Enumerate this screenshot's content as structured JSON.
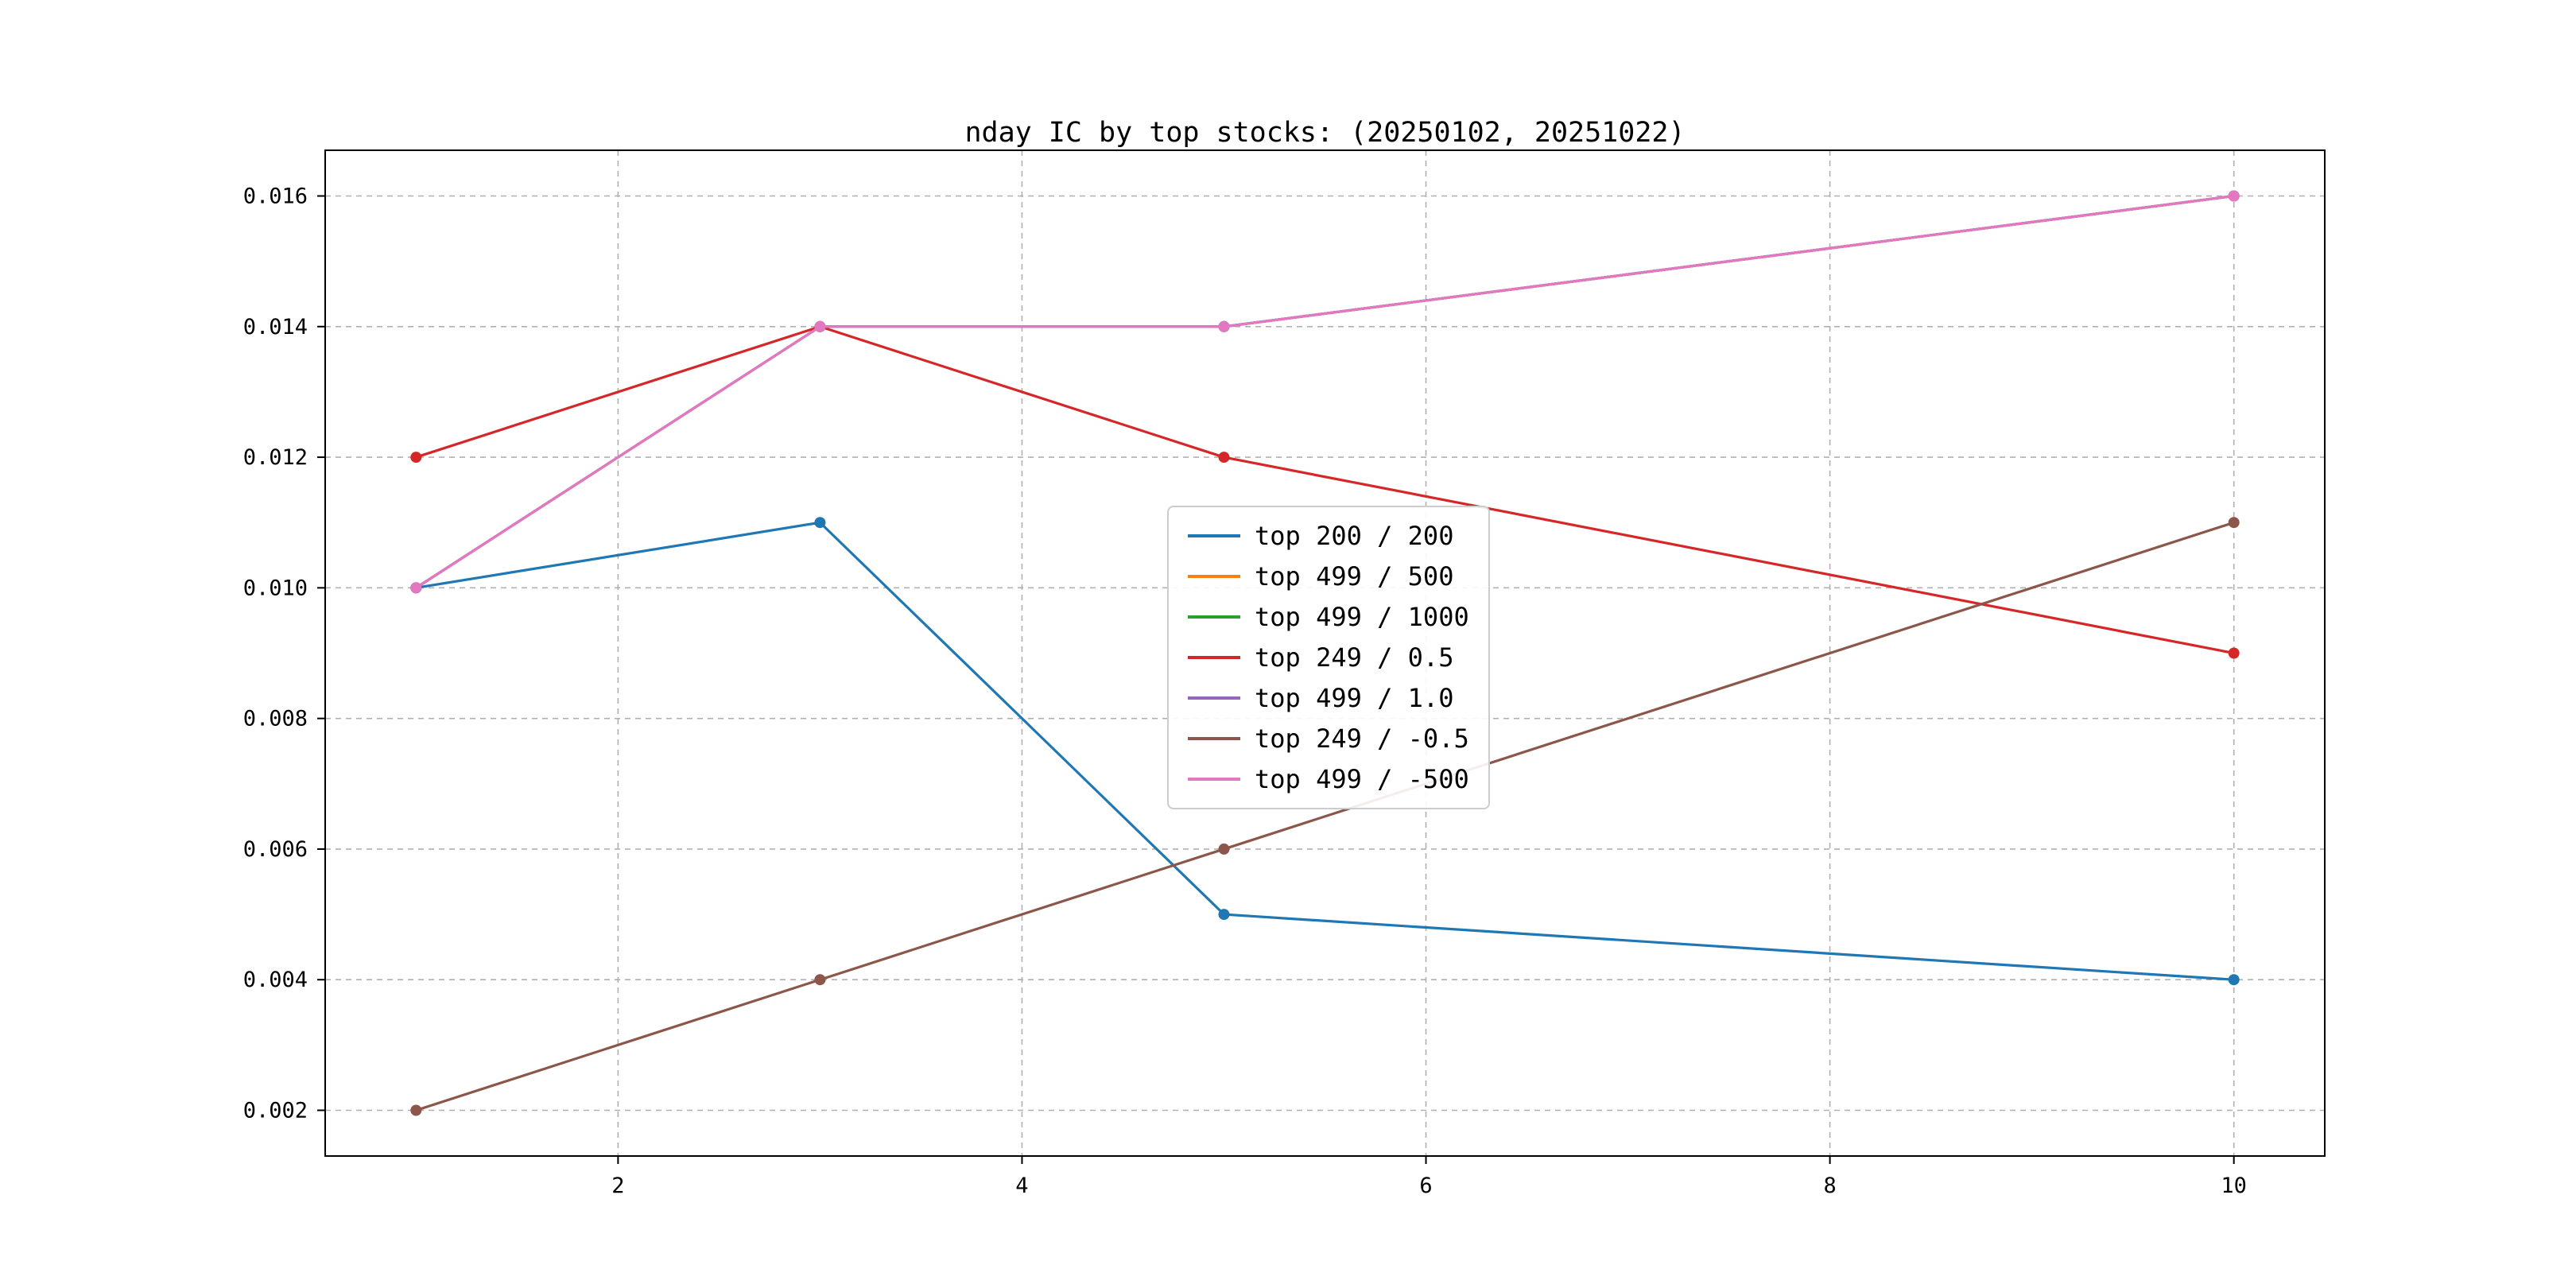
{
  "chart_data": {
    "type": "line",
    "title": "nday IC by top stocks: (20250102, 20251022)",
    "x": [
      1,
      3,
      5,
      10
    ],
    "series": [
      {
        "name": "top 200 / 200",
        "color": "#1f77b4",
        "values": [
          0.01,
          0.011,
          0.005,
          0.004
        ]
      },
      {
        "name": "top 499 / 500",
        "color": "#ff7f0e",
        "values": [
          0.01,
          0.014,
          0.014,
          0.016
        ]
      },
      {
        "name": "top 499 / 1000",
        "color": "#2ca02c",
        "values": [
          0.01,
          0.014,
          0.014,
          0.016
        ]
      },
      {
        "name": "top 249 / 0.5",
        "color": "#d62728",
        "values": [
          0.012,
          0.014,
          0.012,
          0.009
        ]
      },
      {
        "name": "top 499 / 1.0",
        "color": "#9467bd",
        "values": [
          0.01,
          0.014,
          0.014,
          0.016
        ]
      },
      {
        "name": "top 249 / -0.5",
        "color": "#8c564b",
        "values": [
          0.002,
          0.004,
          0.006,
          0.011
        ]
      },
      {
        "name": "top 499 / -500",
        "color": "#e377c2",
        "values": [
          0.01,
          0.014,
          0.014,
          0.016
        ]
      }
    ],
    "xlim": [
      0.55,
      10.45
    ],
    "ylim": [
      0.0013,
      0.0167
    ],
    "xticks": [
      2,
      4,
      6,
      8,
      10
    ],
    "xtick_labels": [
      "2",
      "4",
      "6",
      "8",
      "10"
    ],
    "yticks": [
      0.002,
      0.004,
      0.006,
      0.008,
      0.01,
      0.012,
      0.014,
      0.016
    ],
    "ytick_labels": [
      "0.002",
      "0.004",
      "0.006",
      "0.008",
      "0.010",
      "0.012",
      "0.014",
      "0.016"
    ],
    "grid": true,
    "grid_color": "#b0b0b0",
    "legend_position": "center",
    "xlabel": "",
    "ylabel": ""
  }
}
